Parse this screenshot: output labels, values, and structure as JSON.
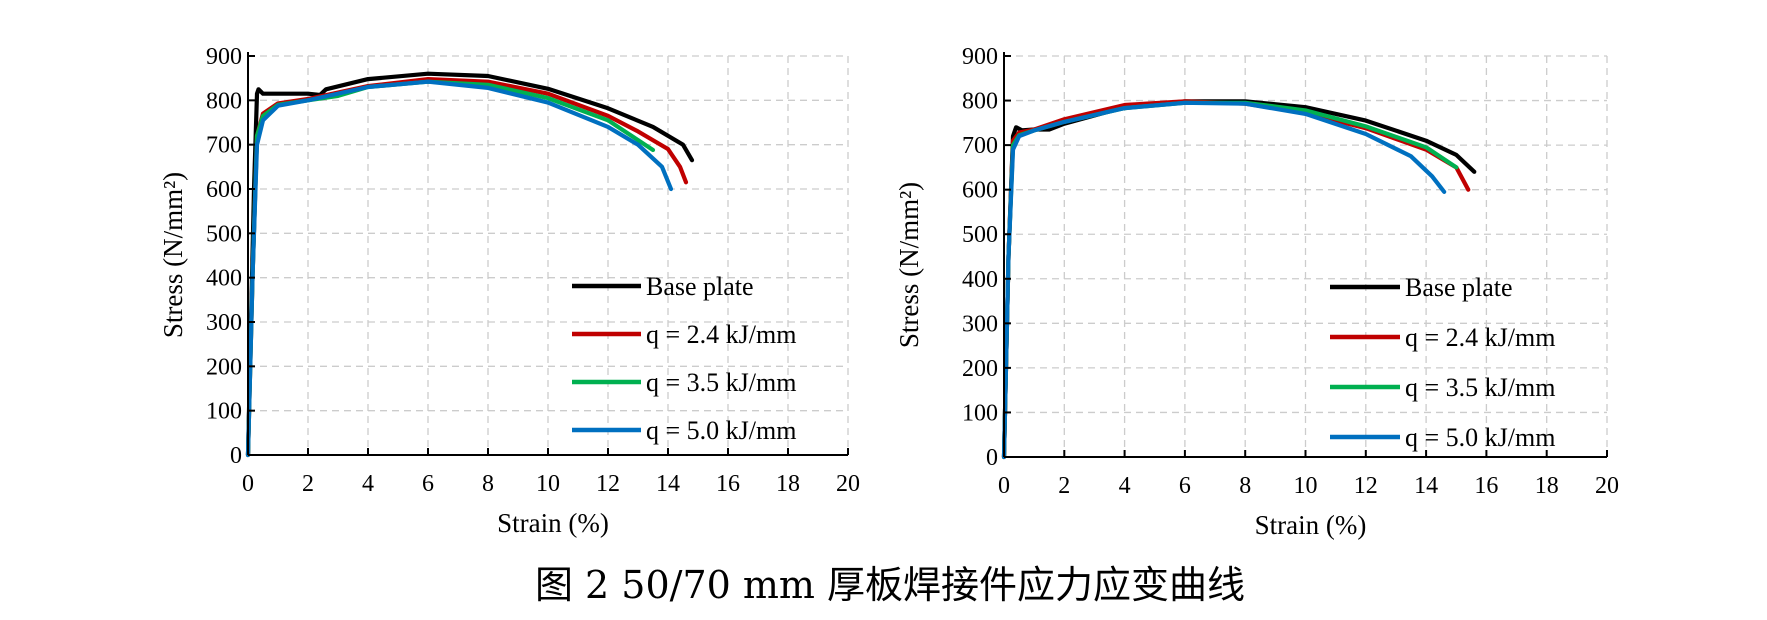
{
  "caption": "图 2 50/70 mm 厚板焊接件应力应变曲线",
  "chart_data": [
    {
      "type": "line",
      "xlabel": "Strain (%)",
      "ylabel": "Stress (N/mm²)",
      "xlim": [
        0,
        20
      ],
      "ylim": [
        0,
        900
      ],
      "xticks": [
        0,
        2,
        4,
        6,
        8,
        10,
        12,
        14,
        16,
        18,
        20
      ],
      "yticks": [
        0,
        100,
        200,
        300,
        400,
        500,
        600,
        700,
        800,
        900
      ],
      "grid": true,
      "legend": "bottom-right",
      "series": [
        {
          "name": "Base plate",
          "color": "#000000",
          "x": [
            0,
            0.2,
            0.3,
            0.35,
            0.5,
            1,
            2,
            2.4,
            2.6,
            4,
            6,
            8,
            10,
            12,
            13.5,
            14.5,
            14.8
          ],
          "y": [
            0,
            600,
            815,
            825,
            815,
            815,
            815,
            812,
            825,
            848,
            860,
            855,
            826,
            782,
            740,
            700,
            665
          ]
        },
        {
          "name": "q = 2.4 kJ/mm",
          "color": "#C00000",
          "x": [
            0,
            0.15,
            0.3,
            0.5,
            1,
            2,
            4,
            6,
            8,
            10,
            12,
            13,
            14,
            14.4,
            14.6
          ],
          "y": [
            0,
            400,
            720,
            770,
            793,
            803,
            832,
            848,
            842,
            815,
            765,
            730,
            690,
            650,
            615
          ]
        },
        {
          "name": "q = 3.5 kJ/mm",
          "color": "#00B050",
          "x": [
            0,
            0.15,
            0.3,
            0.5,
            1,
            2,
            3,
            4,
            6,
            8,
            10,
            12,
            13.5
          ],
          "y": [
            0,
            400,
            720,
            765,
            790,
            800,
            810,
            830,
            842,
            835,
            805,
            755,
            688
          ]
        },
        {
          "name": "q = 5.0 kJ/mm",
          "color": "#0070C0",
          "x": [
            0,
            0.15,
            0.3,
            0.5,
            1,
            2,
            4,
            6,
            8,
            10,
            12,
            13,
            13.8,
            14.1
          ],
          "y": [
            0,
            400,
            700,
            755,
            788,
            800,
            830,
            842,
            828,
            795,
            740,
            700,
            650,
            600
          ]
        }
      ]
    },
    {
      "type": "line",
      "xlabel": "Strain (%)",
      "ylabel": "Stress (N/mm²)",
      "xlim": [
        0,
        20
      ],
      "ylim": [
        0,
        900
      ],
      "xticks": [
        0,
        2,
        4,
        6,
        8,
        10,
        12,
        14,
        16,
        18,
        20
      ],
      "yticks": [
        0,
        100,
        200,
        300,
        400,
        500,
        600,
        700,
        800,
        900
      ],
      "grid": true,
      "legend": "bottom-right",
      "series": [
        {
          "name": "Base plate",
          "color": "#000000",
          "x": [
            0,
            0.15,
            0.3,
            0.4,
            0.6,
            1,
            1.5,
            2,
            4,
            6,
            8,
            10,
            12,
            14,
            15,
            15.6
          ],
          "y": [
            0,
            450,
            720,
            740,
            733,
            735,
            735,
            748,
            785,
            798,
            798,
            785,
            755,
            710,
            678,
            640
          ]
        },
        {
          "name": "q = 2.4 kJ/mm",
          "color": "#C00000",
          "x": [
            0,
            0.15,
            0.3,
            0.5,
            1,
            2,
            4,
            6,
            8,
            10,
            12,
            14,
            15,
            15.4
          ],
          "y": [
            0,
            450,
            710,
            728,
            735,
            758,
            790,
            798,
            793,
            772,
            738,
            690,
            650,
            600
          ]
        },
        {
          "name": "q = 3.5 kJ/mm",
          "color": "#00B050",
          "x": [
            0,
            0.15,
            0.3,
            0.5,
            1,
            2,
            4,
            6,
            8,
            10,
            12,
            14,
            15
          ],
          "y": [
            0,
            450,
            700,
            722,
            733,
            752,
            783,
            795,
            795,
            778,
            742,
            695,
            650
          ]
        },
        {
          "name": "q = 5.0 kJ/mm",
          "color": "#0070C0",
          "x": [
            0,
            0.15,
            0.3,
            0.5,
            1,
            2,
            4,
            6,
            8,
            10,
            12,
            13.5,
            14.2,
            14.6
          ],
          "y": [
            0,
            450,
            690,
            720,
            733,
            752,
            783,
            795,
            793,
            770,
            725,
            675,
            630,
            595
          ]
        }
      ]
    }
  ]
}
